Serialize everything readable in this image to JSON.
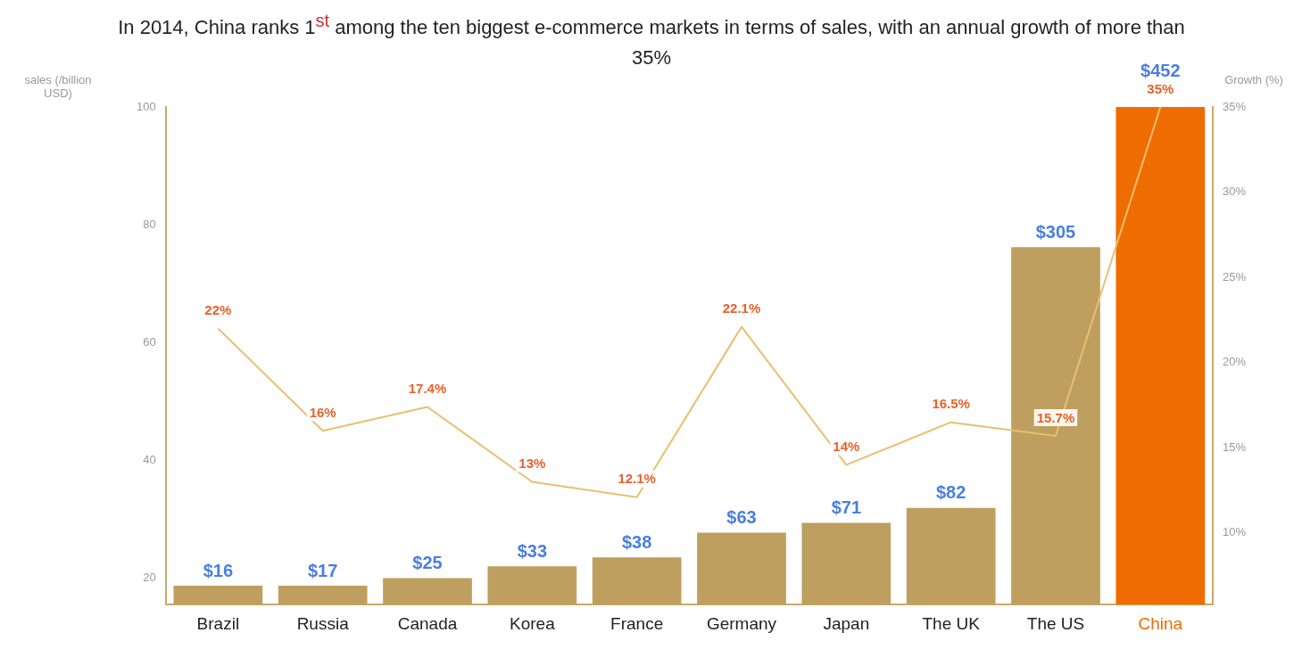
{
  "chart_data": {
    "type": "bar",
    "title": "In 2014, China ranks 1$^{st}$ among the ten biggest e-commerce markets in terms of sales, with an annual growth of more than 35%",
    "ylabel": "sales (/billion USD)",
    "y2label": "Growth (%)",
    "categories": [
      "Brazil",
      "Russia",
      "Canada",
      "Korea",
      "France",
      "Germany",
      "Japan",
      "The UK",
      "The US",
      "China"
    ],
    "series": [
      {
        "type": "bar",
        "colors": [
          "#bf9f5f",
          "#bf9f5f",
          "#bf9f5f",
          "#bf9f5f",
          "#bf9f5f",
          "#bf9f5f",
          "#bf9f5f",
          "#bf9f5f",
          "#bf9f5f",
          "#ef6c00"
        ],
        "values": [
          18.7,
          18.7,
          20,
          22,
          23.5,
          27.7,
          29.4,
          31.9,
          76.2,
          100
        ]
      },
      {
        "type": "line",
        "axis": "y2",
        "color": "#e8c070",
        "values": [
          22,
          16,
          17.4,
          13,
          12.1,
          22.1,
          14,
          16.5,
          15.7,
          35
        ],
        "value_labels": [
          "22%",
          "16%",
          "17.4%",
          "13%",
          "12.1%",
          "22.1%",
          "14%",
          "16.5%",
          "15.7%",
          "35%"
        ]
      }
    ],
    "ylim": [
      15.5,
      100
    ],
    "yticks": [
      20,
      40,
      60,
      80,
      100
    ],
    "y2lim": [
      5.8,
      35
    ],
    "y2ticks": [
      {
        "value": 10,
        "label": "10%"
      },
      {
        "value": 15,
        "label": "15%"
      },
      {
        "value": 20,
        "label": "20%"
      },
      {
        "value": 25,
        "label": "25%"
      },
      {
        "value": 30,
        "label": "30%"
      },
      {
        "value": 35,
        "label": "35%"
      }
    ],
    "annotations": [
      {
        "text": "$16",
        "x": "Brazil",
        "y": 18.7
      },
      {
        "text": "$17",
        "x": "Russia",
        "y": 18.7
      },
      {
        "text": "$25",
        "x": "Canada",
        "y": 20
      },
      {
        "text": "$33",
        "x": "Korea",
        "y": 22
      },
      {
        "text": "$38",
        "x": "France",
        "y": 23.5
      },
      {
        "text": "$63",
        "x": "Germany",
        "y": 27.7
      },
      {
        "text": "$71",
        "x": "Japan",
        "y": 29.4
      },
      {
        "text": "$82",
        "x": "The UK",
        "y": 31.9
      },
      {
        "text": "$305",
        "x": "The US",
        "y": 76.2
      },
      {
        "text": "$452",
        "x": "China",
        "y": 100
      }
    ],
    "grid": false,
    "legend": false,
    "marker": "none"
  }
}
